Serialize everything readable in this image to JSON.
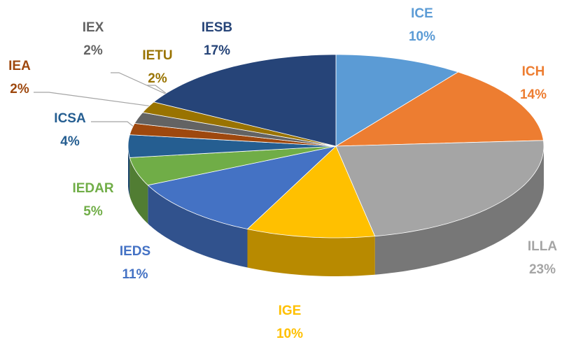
{
  "chart_data": {
    "type": "pie",
    "categories": [
      "ICE",
      "ICH",
      "ILLA",
      "IGE",
      "IEDS",
      "IEDAR",
      "ICSA",
      "IEA",
      "IEX",
      "IETU",
      "IESB"
    ],
    "values": [
      10,
      14,
      23,
      10,
      11,
      5,
      4,
      2,
      2,
      2,
      17
    ],
    "value_labels": [
      "10%",
      "14%",
      "23%",
      "10%",
      "11%",
      "5%",
      "4%",
      "2%",
      "2%",
      "2%",
      "17%"
    ],
    "colors": [
      "#5b9bd5",
      "#ed7d31",
      "#a5a5a5",
      "#ffc000",
      "#4472c4",
      "#70ad47",
      "#255e91",
      "#9e480e",
      "#636363",
      "#997300",
      "#264478"
    ]
  }
}
